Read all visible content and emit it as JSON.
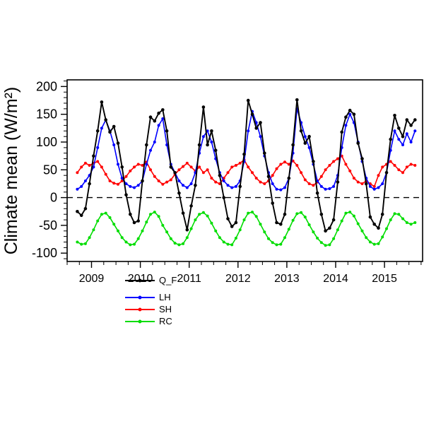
{
  "chart_data": {
    "type": "line",
    "title": "",
    "xlabel": "",
    "ylabel": "Climate mean (W/m²)",
    "xlim": [
      2008.5,
      2015.78
    ],
    "ylim": [
      -115,
      212
    ],
    "yticks": [
      -100,
      -50,
      0,
      50,
      100,
      150,
      200
    ],
    "xticks": [
      2009,
      2010,
      2011,
      2012,
      2013,
      2014,
      2015
    ],
    "zero_reference_line": true,
    "grid": false,
    "legend_position": "below-axis-left-of-center",
    "x": [
      2008.708,
      2008.792,
      2008.875,
      2008.958,
      2009.042,
      2009.125,
      2009.208,
      2009.292,
      2009.375,
      2009.458,
      2009.542,
      2009.625,
      2009.708,
      2009.792,
      2009.875,
      2009.958,
      2010.042,
      2010.125,
      2010.208,
      2010.292,
      2010.375,
      2010.458,
      2010.542,
      2010.625,
      2010.708,
      2010.792,
      2010.875,
      2010.958,
      2011.042,
      2011.125,
      2011.208,
      2011.292,
      2011.375,
      2011.458,
      2011.542,
      2011.625,
      2011.708,
      2011.792,
      2011.875,
      2011.958,
      2012.042,
      2012.125,
      2012.208,
      2012.292,
      2012.375,
      2012.458,
      2012.542,
      2012.625,
      2012.708,
      2012.792,
      2012.875,
      2012.958,
      2013.042,
      2013.125,
      2013.208,
      2013.292,
      2013.375,
      2013.458,
      2013.542,
      2013.625,
      2013.708,
      2013.792,
      2013.875,
      2013.958,
      2014.042,
      2014.125,
      2014.208,
      2014.292,
      2014.375,
      2014.458,
      2014.542,
      2014.625,
      2014.708,
      2014.792,
      2014.875,
      2014.958,
      2015.042,
      2015.125,
      2015.208,
      2015.292,
      2015.375,
      2015.458,
      2015.542,
      2015.625
    ],
    "series": [
      {
        "name": "Q_F",
        "color": "#000000",
        "values": [
          -25,
          -32,
          -20,
          25,
          75,
          120,
          172,
          140,
          118,
          128,
          98,
          55,
          5,
          -30,
          -45,
          -42,
          30,
          95,
          145,
          138,
          152,
          158,
          120,
          55,
          45,
          8,
          -28,
          -58,
          -15,
          22,
          95,
          163,
          95,
          120,
          85,
          40,
          0,
          -38,
          -52,
          -45,
          20,
          78,
          175,
          150,
          125,
          135,
          80,
          38,
          -10,
          -45,
          -48,
          -30,
          35,
          95,
          176,
          120,
          98,
          110,
          65,
          8,
          -30,
          -60,
          -55,
          -40,
          28,
          118,
          145,
          157,
          150,
          98,
          70,
          25,
          -35,
          -48,
          -55,
          -30,
          45,
          105,
          148,
          125,
          110,
          140,
          130,
          140
        ]
      },
      {
        "name": "LH",
        "color": "#0000ff",
        "values": [
          15,
          20,
          30,
          40,
          55,
          90,
          125,
          140,
          120,
          95,
          60,
          35,
          25,
          20,
          18,
          22,
          30,
          60,
          85,
          100,
          130,
          142,
          95,
          60,
          45,
          30,
          22,
          18,
          25,
          45,
          80,
          110,
          120,
          100,
          70,
          45,
          30,
          22,
          18,
          20,
          30,
          65,
          120,
          155,
          135,
          110,
          75,
          45,
          25,
          15,
          14,
          18,
          35,
          80,
          160,
          135,
          110,
          90,
          60,
          30,
          20,
          15,
          16,
          20,
          40,
          90,
          130,
          150,
          135,
          100,
          65,
          35,
          20,
          15,
          18,
          25,
          45,
          85,
          120,
          105,
          95,
          115,
          100,
          120
        ]
      },
      {
        "name": "SH",
        "color": "#ff0000",
        "values": [
          45,
          55,
          62,
          58,
          62,
          65,
          55,
          42,
          30,
          26,
          24,
          30,
          38,
          48,
          55,
          60,
          58,
          64,
          50,
          38,
          30,
          24,
          28,
          32,
          42,
          50,
          56,
          62,
          55,
          48,
          55,
          45,
          50,
          35,
          28,
          25,
          35,
          45,
          55,
          58,
          62,
          68,
          55,
          45,
          35,
          28,
          25,
          30,
          40,
          52,
          60,
          64,
          60,
          66,
          58,
          45,
          32,
          25,
          22,
          28,
          38,
          50,
          58,
          65,
          70,
          75,
          60,
          48,
          35,
          28,
          25,
          30,
          25,
          20,
          40,
          55,
          60,
          65,
          58,
          50,
          45,
          55,
          60,
          58
        ]
      },
      {
        "name": "RC",
        "color": "#00dd00",
        "values": [
          -80,
          -84,
          -83,
          -72,
          -58,
          -42,
          -30,
          -28,
          -36,
          -48,
          -60,
          -72,
          -80,
          -85,
          -84,
          -74,
          -60,
          -44,
          -30,
          -26,
          -34,
          -50,
          -62,
          -74,
          -82,
          -85,
          -83,
          -72,
          -56,
          -40,
          -30,
          -27,
          -33,
          -46,
          -60,
          -72,
          -80,
          -84,
          -85,
          -73,
          -58,
          -40,
          -28,
          -26,
          -34,
          -48,
          -62,
          -74,
          -81,
          -85,
          -84,
          -72,
          -57,
          -41,
          -29,
          -27,
          -35,
          -49,
          -62,
          -73,
          -81,
          -86,
          -85,
          -74,
          -58,
          -42,
          -28,
          -26,
          -33,
          -47,
          -60,
          -72,
          -80,
          -84,
          -83,
          -71,
          -56,
          -40,
          -29,
          -30,
          -38,
          -45,
          -48,
          -45
        ]
      }
    ]
  }
}
